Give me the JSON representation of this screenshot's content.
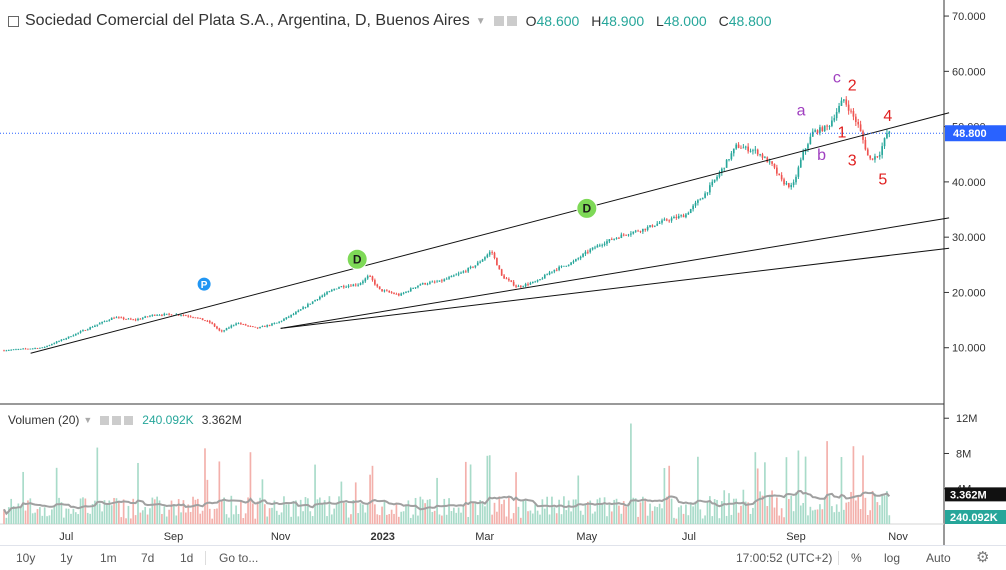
{
  "header": {
    "symbol_title": "Sociedad Comercial del Plata S.A., Argentina, D, Buenos Aires",
    "ohlc": [
      {
        "key": "O",
        "value": "48.600"
      },
      {
        "key": "H",
        "value": "48.900"
      },
      {
        "key": "L",
        "value": "48.000"
      },
      {
        "key": "C",
        "value": "48.800"
      }
    ]
  },
  "volume_legend": {
    "name": "Volumen (20)",
    "value1": "240.092K",
    "value2": "3.362M"
  },
  "chart_data": {
    "type": "candlestick",
    "title": "Sociedad Comercial del Plata S.A., Argentina, D, Buenos Aires",
    "price_axis": {
      "ticks": [
        10,
        20,
        30,
        40,
        50,
        60,
        70
      ],
      "tick_labels": [
        "10.000",
        "20.000",
        "30.000",
        "40.000",
        "50.000",
        "60.000",
        "70.000"
      ],
      "range": [
        0,
        72
      ]
    },
    "current_price": {
      "value": 48.8,
      "label": "48.800",
      "color": "#2962ff"
    },
    "time_axis": {
      "labels": [
        "Jul",
        "Sep",
        "Nov",
        "2023",
        "Mar",
        "May",
        "Jul",
        "Sep",
        "Nov"
      ],
      "months_from_start": [
        1.3,
        3.4,
        5.5,
        7.5,
        9.5,
        11.5,
        13.5,
        15.6,
        17.6
      ],
      "range_months": [
        0,
        18.5
      ]
    },
    "price_path": [
      [
        0,
        9.5
      ],
      [
        0.8,
        10
      ],
      [
        1.2,
        11.5
      ],
      [
        1.7,
        13.5
      ],
      [
        2.2,
        15.5
      ],
      [
        2.6,
        15
      ],
      [
        3.0,
        16
      ],
      [
        3.5,
        16
      ],
      [
        3.8,
        15.5
      ],
      [
        4.1,
        14.5
      ],
      [
        4.3,
        12.8
      ],
      [
        4.6,
        14.5
      ],
      [
        5.0,
        13.5
      ],
      [
        5.4,
        14.5
      ],
      [
        5.8,
        16.5
      ],
      [
        6.2,
        19
      ],
      [
        6.6,
        21
      ],
      [
        7.0,
        21.5
      ],
      [
        7.2,
        23
      ],
      [
        7.4,
        20.5
      ],
      [
        7.8,
        19.5
      ],
      [
        8.2,
        21.5
      ],
      [
        8.6,
        22
      ],
      [
        9.0,
        23.5
      ],
      [
        9.3,
        25
      ],
      [
        9.6,
        27.5
      ],
      [
        9.8,
        23
      ],
      [
        10.1,
        21
      ],
      [
        10.5,
        22
      ],
      [
        10.8,
        24
      ],
      [
        11.2,
        25.5
      ],
      [
        11.5,
        27.5
      ],
      [
        11.8,
        29
      ],
      [
        12.2,
        30.5
      ],
      [
        12.6,
        31.5
      ],
      [
        13.0,
        33
      ],
      [
        13.4,
        34
      ],
      [
        13.8,
        38
      ],
      [
        14.1,
        42
      ],
      [
        14.4,
        46.5
      ],
      [
        14.8,
        45.5
      ],
      [
        15.1,
        43
      ],
      [
        15.3,
        40
      ],
      [
        15.5,
        39
      ],
      [
        15.7,
        45
      ],
      [
        15.9,
        49
      ],
      [
        16.2,
        50
      ],
      [
        16.5,
        55
      ],
      [
        16.8,
        50
      ],
      [
        17.0,
        44
      ],
      [
        17.2,
        45
      ],
      [
        17.35,
        48.8
      ]
    ],
    "volume_axis": {
      "ticks": [
        4,
        8,
        12
      ],
      "tick_labels": [
        "4M",
        "8M",
        "12M"
      ],
      "range": [
        0,
        13.5
      ],
      "unit": "M"
    },
    "volume_last_labels": [
      {
        "value": 3.362,
        "label": "3.362M"
      },
      {
        "value": 0.24,
        "label": "240.092K"
      }
    ],
    "annotations": {
      "labels": [
        {
          "text": "P",
          "t": 4.0,
          "price": 21.5,
          "kind": "badge",
          "color": "#2196f3"
        },
        {
          "text": "D",
          "t": 7.0,
          "price": 26.0,
          "kind": "badge",
          "color": "#7ed957"
        },
        {
          "text": "D",
          "t": 11.5,
          "price": 35.2,
          "kind": "badge",
          "color": "#7ed957"
        },
        {
          "text": "a",
          "t": 15.7,
          "price": 52.0,
          "color": "#a040c0"
        },
        {
          "text": "b",
          "t": 16.1,
          "price": 44.0,
          "color": "#a040c0"
        },
        {
          "text": "c",
          "t": 16.4,
          "price": 58.0,
          "color": "#a040c0"
        },
        {
          "text": "1",
          "t": 16.5,
          "price": 48.0,
          "color": "#e02020"
        },
        {
          "text": "2",
          "t": 16.7,
          "price": 56.5,
          "color": "#e02020"
        },
        {
          "text": "3",
          "t": 16.7,
          "price": 43.0,
          "color": "#e02020"
        },
        {
          "text": "4",
          "t": 17.4,
          "price": 51.0,
          "color": "#e02020"
        },
        {
          "text": "5",
          "t": 17.3,
          "price": 39.5,
          "color": "#e02020"
        }
      ],
      "trendlines": [
        {
          "from": [
            0.6,
            9.0
          ],
          "to": [
            18.6,
            52.5
          ]
        },
        {
          "from": [
            5.5,
            13.5
          ],
          "to": [
            18.6,
            33.5
          ]
        },
        {
          "from": [
            5.5,
            13.5
          ],
          "to": [
            18.6,
            28.0
          ]
        }
      ]
    },
    "colors": {
      "up": "#26a69a",
      "down": "#ef5350",
      "up_volume": "#a8dbc9",
      "down_volume": "#f3b0ab",
      "ma": "#a0a0a0"
    }
  },
  "bottom_bar": {
    "ranges": [
      "10y",
      "1y",
      "1m",
      "7d",
      "1d"
    ],
    "goto": "Go to...",
    "time": "17:00:52 (UTC+2)",
    "options": [
      "%",
      "log",
      "Auto"
    ],
    "settings_icon": "gear-icon"
  }
}
